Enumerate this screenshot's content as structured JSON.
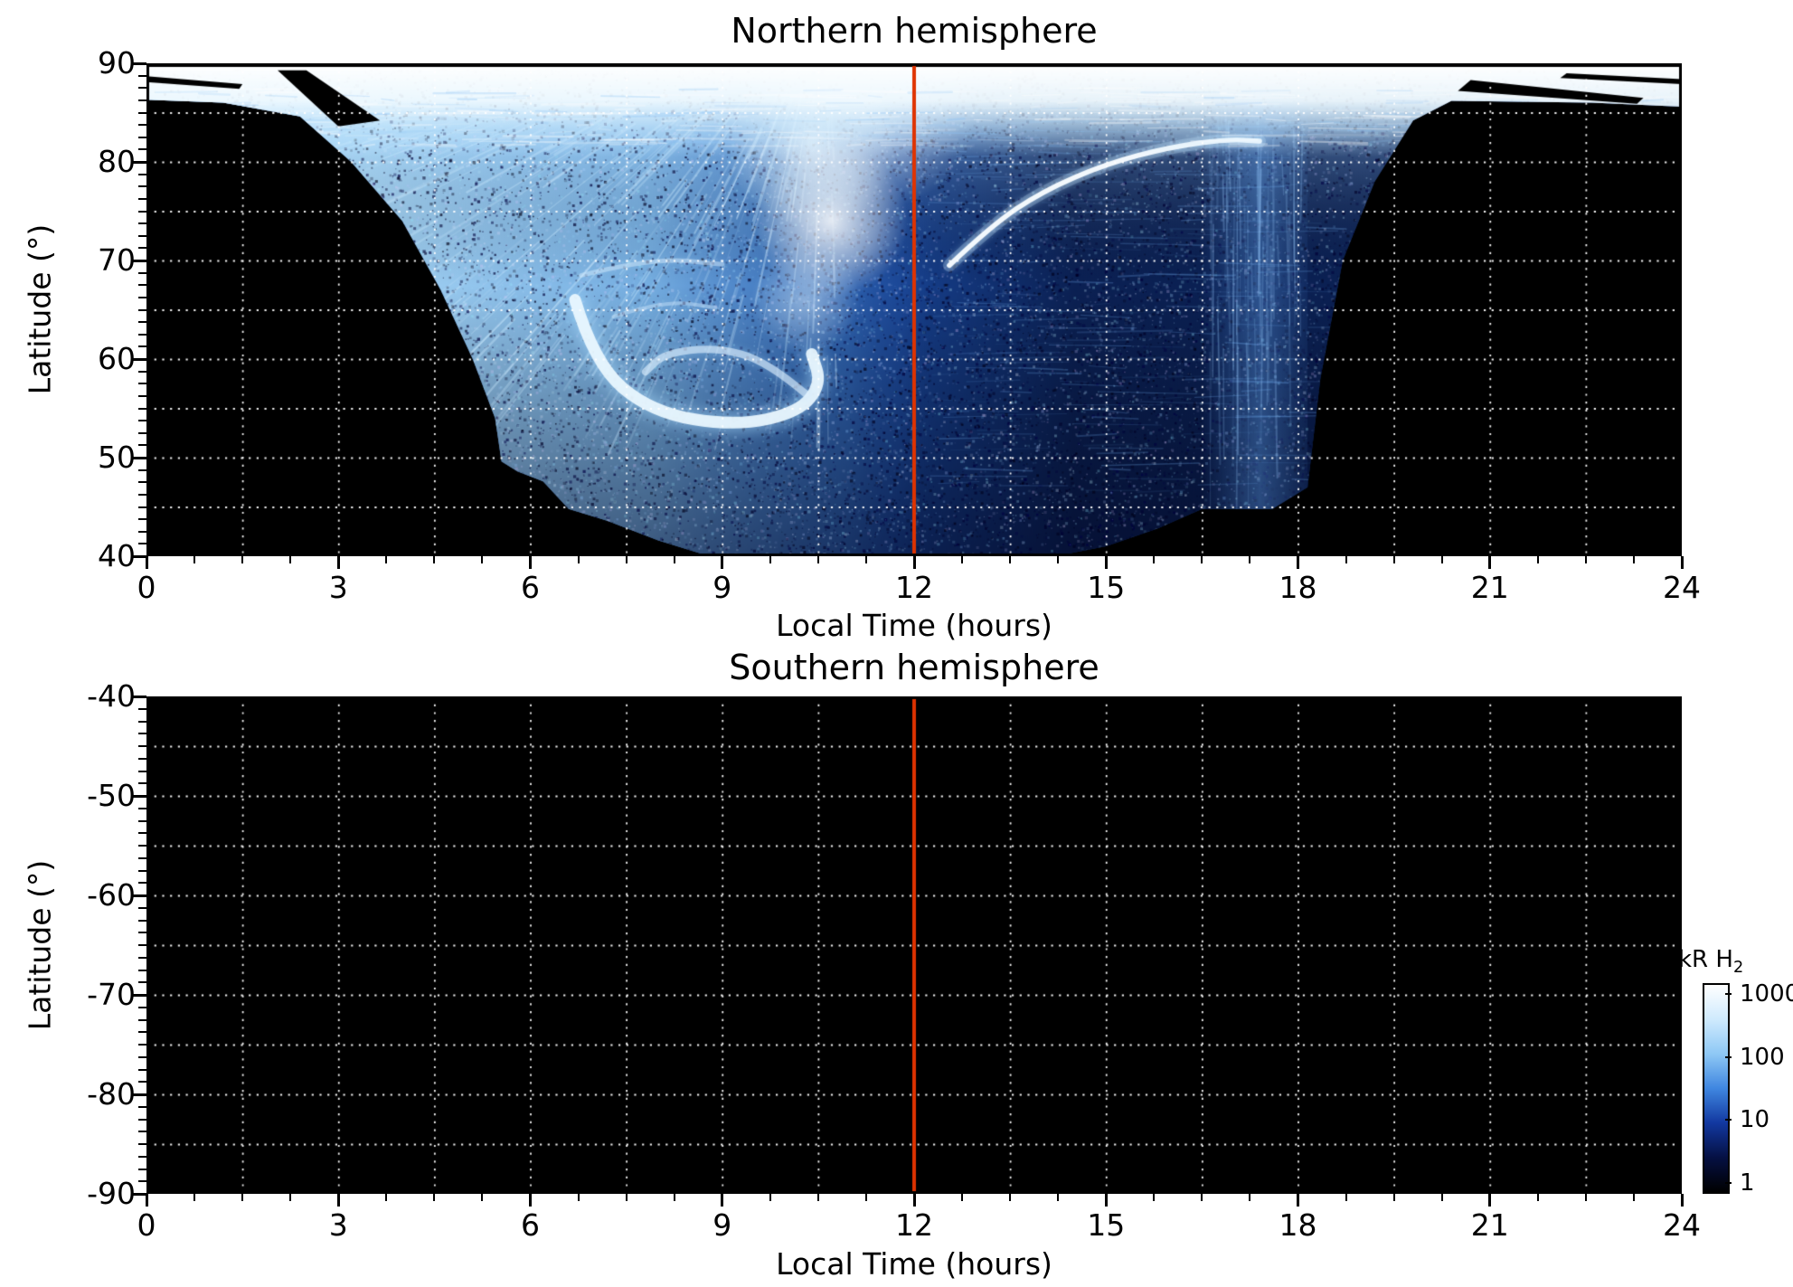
{
  "figure": {
    "description": "Two-panel auroral H2 emission map versus local time and latitude; northern hemisphere shows bright blue-white aurora, southern hemisphere has no data (black). Vertical red line marks local noon in both panels."
  },
  "chart_data": [
    {
      "id": "north",
      "type": "heatmap",
      "title": "Northern hemisphere",
      "xlabel": "Local Time (hours)",
      "ylabel": "Latitude (°)",
      "xlim": [
        0,
        24
      ],
      "ylim": [
        40,
        90
      ],
      "xticks": [
        0,
        3,
        6,
        9,
        12,
        15,
        18,
        21,
        24
      ],
      "yticks": [
        90,
        80,
        70,
        60,
        50,
        40
      ],
      "grid": {
        "x_step": 1.5,
        "y_step": 5,
        "x_minor": 0.75,
        "y_minor": 1.25,
        "style": "white dotted"
      },
      "noon_line": {
        "x": 12,
        "color": "#df3300"
      },
      "background_color": "#000000",
      "colormap": "log scale, black (1 kR) - dark blue - light blue - white (1000 kR)",
      "coverage_polygon": [
        [
          0,
          90
        ],
        [
          24,
          90
        ],
        [
          24,
          85.6
        ],
        [
          22.6,
          86.0
        ],
        [
          20.4,
          86.2
        ],
        [
          19.8,
          84.2
        ],
        [
          19.2,
          78
        ],
        [
          18.7,
          70
        ],
        [
          18.35,
          58
        ],
        [
          18.15,
          47
        ],
        [
          17.6,
          44.8
        ],
        [
          16.5,
          44.8
        ],
        [
          15.8,
          42.8
        ],
        [
          15.0,
          41.0
        ],
        [
          14.2,
          40
        ],
        [
          8.8,
          40
        ],
        [
          8.0,
          41.6
        ],
        [
          7.2,
          43.6
        ],
        [
          6.6,
          44.8
        ],
        [
          6.2,
          47.6
        ],
        [
          5.8,
          48.6
        ],
        [
          5.55,
          49.6
        ],
        [
          5.45,
          54
        ],
        [
          5.1,
          60
        ],
        [
          4.6,
          67
        ],
        [
          4.0,
          74
        ],
        [
          3.2,
          80
        ],
        [
          2.4,
          84.6
        ],
        [
          1.2,
          86.0
        ],
        [
          0,
          86.3
        ]
      ],
      "features": [
        {
          "name": "polar_cap_band",
          "t_range": [
            0,
            24
          ],
          "lat_range": [
            84,
            90
          ],
          "intensity_kR": 1000,
          "description": "saturated white band around the pole with feathery lower edge and black diagonal gaps near 2.5 h and 21-23 h"
        },
        {
          "name": "dawn_fan",
          "t_range": [
            3,
            11.5
          ],
          "lat_range": [
            50,
            88
          ],
          "intensity_kR": "100-1000",
          "description": "bright light-blue fan with streaks radiating toward the pole"
        },
        {
          "name": "dawn_spiral",
          "center_t": 8.8,
          "center_lat": 60,
          "t_range": [
            6.5,
            10.6
          ],
          "lat_range": [
            52,
            70
          ],
          "intensity_kR": 500,
          "description": "bright curled spiral arc"
        },
        {
          "name": "noon_tongue",
          "center_t": 10.7,
          "center_lat": 78,
          "intensity_kR": 800,
          "description": "white tongue linking the polar band to the spiral just before noon"
        },
        {
          "name": "afternoon_arc",
          "points_t_lat": [
            [
              12.55,
              69.5
            ],
            [
              13.2,
              73.5
            ],
            [
              14.0,
              77.0
            ],
            [
              15.0,
              79.8
            ],
            [
              16.0,
              81.5
            ],
            [
              16.9,
              82.3
            ],
            [
              17.4,
              82.1
            ]
          ],
          "intensity_kR": 700,
          "description": "thin bright arc rising from ~70° at 12.5 h to ~82° near 17 h"
        },
        {
          "name": "dusk_sector",
          "t_range": [
            12,
            18
          ],
          "lat_range": [
            45,
            85
          ],
          "intensity_kR": "1-10",
          "description": "dark speckled blue sector"
        },
        {
          "name": "dusk_column",
          "t_range": [
            16.8,
            18.1
          ],
          "lat_range": [
            45,
            85
          ],
          "intensity_kR": 30,
          "description": "slightly brighter streaked vertical column near 17-18 h"
        },
        {
          "name": "no_data",
          "description": "black regions: t<5.5 h below 85°, t>18.2 h below 84°, below ~45° outside 8.5-15.5 h"
        }
      ]
    },
    {
      "id": "south",
      "type": "heatmap",
      "title": "Southern hemisphere",
      "xlabel": "Local Time (hours)",
      "ylabel": "Latitude (°)",
      "xlim": [
        0,
        24
      ],
      "ylim": [
        -90,
        -40
      ],
      "xticks": [
        0,
        3,
        6,
        9,
        12,
        15,
        18,
        21,
        24
      ],
      "yticks": [
        -40,
        -50,
        -60,
        -70,
        -80,
        -90
      ],
      "grid": {
        "x_step": 1.5,
        "y_step": 5,
        "x_minor": 0.75,
        "y_minor": 1.25,
        "style": "white dotted"
      },
      "noon_line": {
        "x": 12,
        "color": "#df3300"
      },
      "background_color": "#000000",
      "values": "no emission data - uniform black"
    }
  ],
  "colorbar": {
    "label_main": "kR H",
    "label_sub": "2",
    "scale": "log",
    "ticks": [
      "1000",
      "100",
      "10",
      "1"
    ],
    "colors": [
      "#ffffff",
      "#cfeafd",
      "#8ec8f5",
      "#3f86e0",
      "#1238a0",
      "#051043",
      "#000000"
    ]
  }
}
